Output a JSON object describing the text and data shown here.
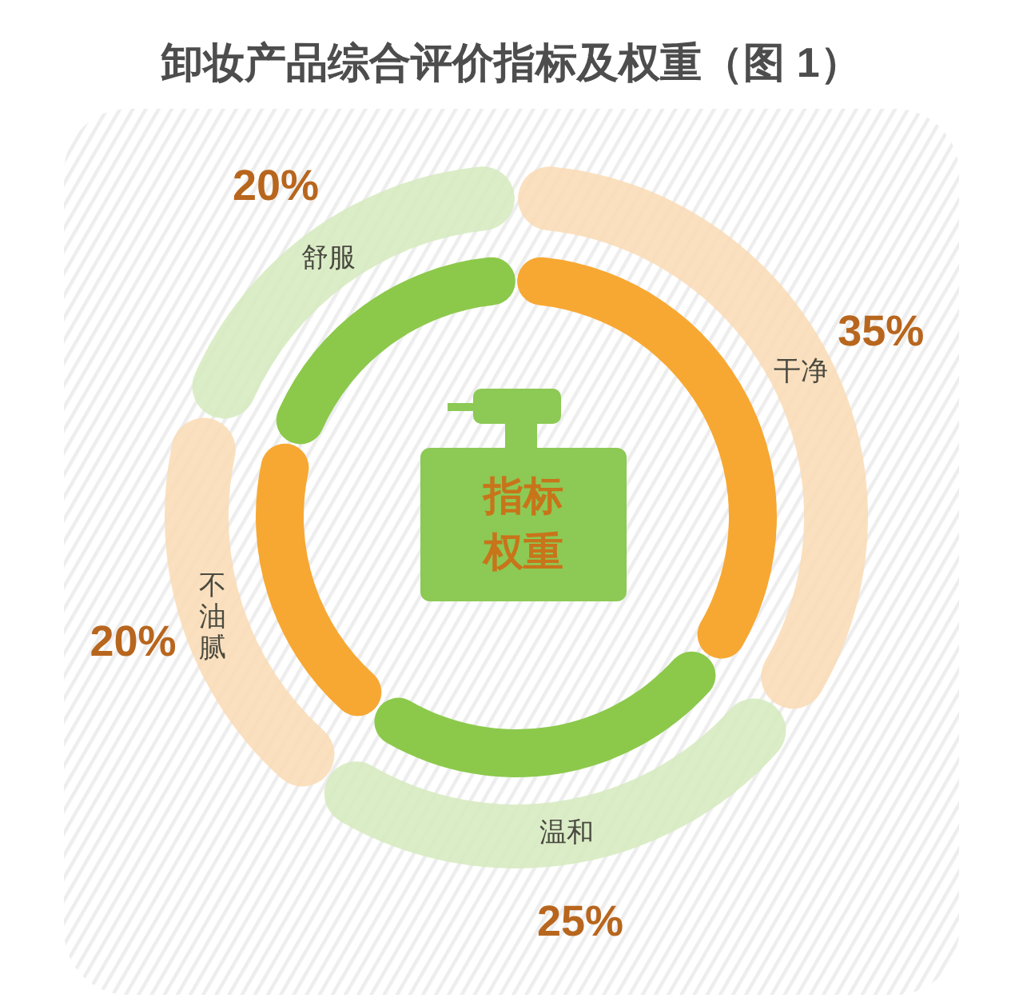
{
  "chart_data": {
    "type": "donut",
    "title": "卸妆产品综合评价指标及权重（图 1）",
    "categories": [
      "干净",
      "温和",
      "不油腻",
      "舒服"
    ],
    "series": [
      {
        "values": [
          35,
          25,
          20,
          20
        ],
        "colors": [
          "#f7a833",
          "#8cc94b",
          "#f7a833",
          "#8cc94b"
        ]
      },
      {
        "values": [
          35,
          25,
          20,
          20
        ],
        "colors": [
          "#fadbb4",
          "#d5eabd",
          "#fadbb4",
          "#d5eabd"
        ]
      }
    ],
    "value_labels": [
      "35%",
      "25%",
      "20%",
      "20%"
    ],
    "annotations": [
      "指标权重"
    ]
  }
}
